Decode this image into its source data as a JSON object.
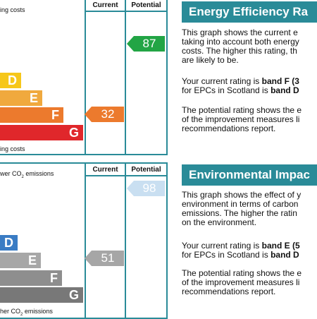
{
  "energy": {
    "top_label": "ing costs",
    "bottom_label": "ing costs",
    "col_current": "Current",
    "col_potential": "Potential",
    "bands": [
      {
        "letter": "D",
        "color": "#f6c71a"
      },
      {
        "letter": "E",
        "color": "#f0a93e"
      },
      {
        "letter": "F",
        "color": "#ec7a2d"
      },
      {
        "letter": "G",
        "color": "#e0272b"
      }
    ],
    "current_value": "32",
    "current_color": "#ec7a2d",
    "potential_value": "87",
    "potential_color": "#22a545",
    "heading": "Energy Efficiency Ra",
    "p1": [
      "This graph shows the current e",
      "taking into account both energy",
      "costs. The higher this rating, th",
      "are likely to be."
    ],
    "p2_a": "Your current rating is ",
    "p2_b": "band F (3",
    "p2_c": "for EPCs in Scotland is ",
    "p2_d": "band D",
    "p3": [
      "The potential rating shows the e",
      "of the improvement measures li",
      "recommendations report."
    ]
  },
  "environmental": {
    "top_label_pre": "wer CO",
    "top_label_sub": "2",
    "top_label_post": " emissions",
    "bottom_label_pre": "her CO",
    "bottom_label_sub": "2",
    "bottom_label_post": " emissions",
    "col_current": "Current",
    "col_potential": "Potential",
    "bands": [
      {
        "letter": "D",
        "color": "#3a7cc4"
      },
      {
        "letter": "E",
        "color": "#a7a7a7"
      },
      {
        "letter": "F",
        "color": "#8e8e8e"
      },
      {
        "letter": "G",
        "color": "#787878"
      }
    ],
    "current_value": "51",
    "current_color": "#a6a6a6",
    "potential_value": "98",
    "potential_color": "#c9dff1",
    "heading": "Environmental Impac",
    "p1": [
      "This graph shows the effect of y",
      "environment in terms of carbon",
      "emissions. The higher the ratin",
      "on the environment."
    ],
    "p2_a": "Your current rating is ",
    "p2_b": "band E (5",
    "p2_c": "for EPCs in Scotland is ",
    "p2_d": "band D",
    "p3": [
      "The potential rating shows the e",
      "of the improvement measures li",
      "recommendations report."
    ]
  }
}
